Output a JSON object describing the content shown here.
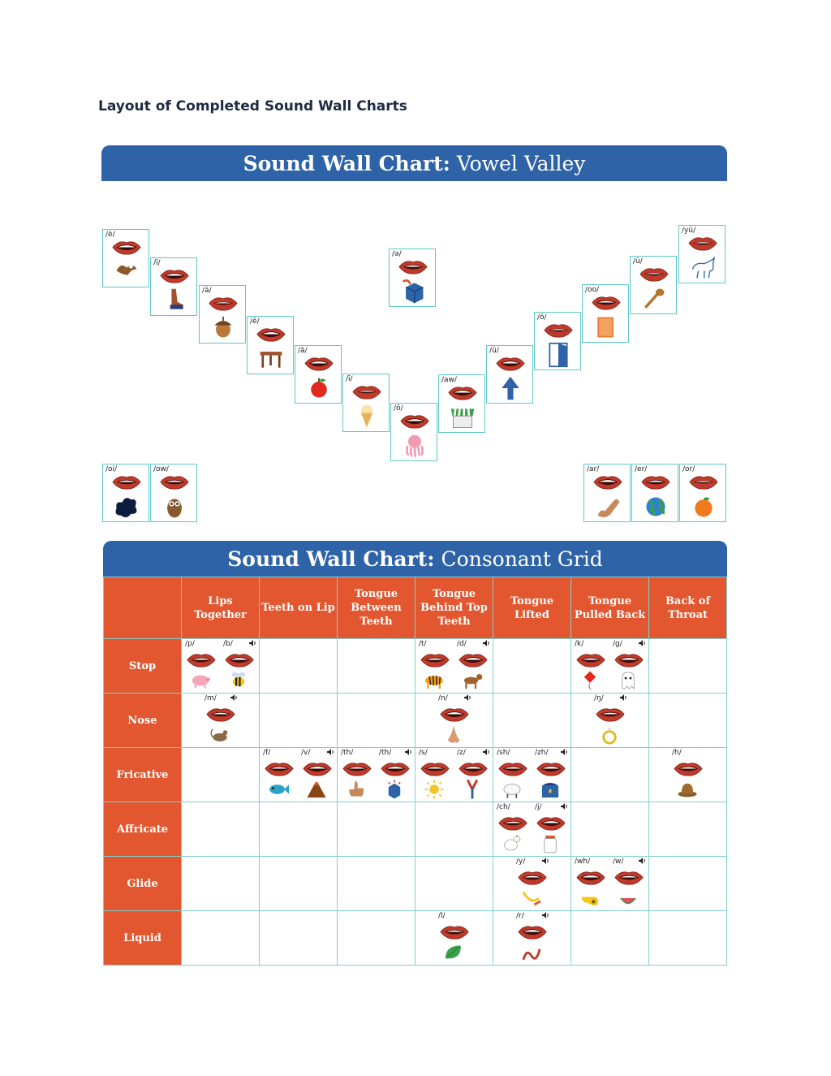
{
  "page_heading": "Layout of Completed Sound Wall Charts",
  "vowel_chart": {
    "title_bold": "Sound Wall Chart:",
    "title_light": "Vowel Valley"
  },
  "consonant_chart": {
    "title_bold": "Sound Wall Chart:",
    "title_light": "Consonant Grid"
  },
  "vowels": [
    {
      "sound": "/ē/",
      "picture": "eagle-icon"
    },
    {
      "sound": "/ī/",
      "picture": "leg-icon"
    },
    {
      "sound": "/ā/",
      "picture": "acorn-icon"
    },
    {
      "sound": "/ĕ/",
      "picture": "table-icon"
    },
    {
      "sound": "/ă/",
      "picture": "apple-icon"
    },
    {
      "sound": "/ĭ/",
      "picture": "ice-cream-icon"
    },
    {
      "sound": "/ŏ/",
      "picture": "octopus-icon"
    },
    {
      "sound": "/aw/",
      "picture": "awning-icon"
    },
    {
      "sound": "/ŭ/",
      "picture": "up-arrow-icon"
    },
    {
      "sound": "/ō/",
      "picture": "open-door-icon"
    },
    {
      "sound": "/oo/",
      "picture": "book-icon"
    },
    {
      "sound": "/ū/",
      "picture": "spoon-icon"
    },
    {
      "sound": "/yū/",
      "picture": "unicorn-icon"
    },
    {
      "sound": "/ə/",
      "picture": "cube-icon"
    },
    {
      "sound": "/oi/",
      "picture": "oil-spill-icon"
    },
    {
      "sound": "/ow/",
      "picture": "owl-icon"
    },
    {
      "sound": "/ar/",
      "picture": "arm-icon"
    },
    {
      "sound": "/er/",
      "picture": "earth-icon"
    },
    {
      "sound": "/or/",
      "picture": "orange-icon"
    }
  ],
  "columns": [
    "",
    "Lips Together",
    "Teeth on Lip",
    "Tongue Between Teeth",
    "Tongue Behind Top Teeth",
    "Tongue Lifted",
    "Tongue Pulled Back",
    "Back of Throat"
  ],
  "rows": [
    "Stop",
    "Nose",
    "Fricative",
    "Affricate",
    "Glide",
    "Liquid"
  ],
  "consonants": {
    "stop": [
      {
        "sound": "/p/",
        "picture": "pig-icon"
      },
      {
        "sound": "/b/",
        "picture": "bee-icon"
      },
      {
        "sound": "/t/",
        "picture": "tiger-icon"
      },
      {
        "sound": "/d/",
        "picture": "dog-icon"
      },
      {
        "sound": "/k/",
        "picture": "kite-icon"
      },
      {
        "sound": "/g/",
        "picture": "ghost-icon"
      }
    ],
    "nose": [
      {
        "sound": "/m/",
        "picture": "mouse-icon"
      },
      {
        "sound": "/n/",
        "picture": "nose-icon"
      },
      {
        "sound": "/ŋ/",
        "picture": "ring-icon"
      }
    ],
    "fricative": [
      {
        "sound": "/f/",
        "picture": "fish-icon"
      },
      {
        "sound": "/v/",
        "picture": "volcano-icon"
      },
      {
        "sound": "/th/",
        "picture": "thumb-icon"
      },
      {
        "sound": "/th/",
        "picture": "this-cube-icon"
      },
      {
        "sound": "/s/",
        "picture": "sun-icon"
      },
      {
        "sound": "/z/",
        "picture": "zipper-icon"
      },
      {
        "sound": "/sh/",
        "picture": "sheep-icon"
      },
      {
        "sound": "/zh/",
        "picture": "treasure-icon"
      },
      {
        "sound": "/h/",
        "picture": "hat-icon"
      }
    ],
    "affricate": [
      {
        "sound": "/ch/",
        "picture": "chicken-icon"
      },
      {
        "sound": "/j/",
        "picture": "jar-icon"
      }
    ],
    "glide": [
      {
        "sound": "/y/",
        "picture": "yarn-icon"
      },
      {
        "sound": "/wh/",
        "picture": "whistle-icon"
      },
      {
        "sound": "/w/",
        "picture": "watermelon-icon"
      }
    ],
    "liquid": [
      {
        "sound": "/l/",
        "picture": "leaf-icon"
      },
      {
        "sound": "/r/",
        "picture": "rope-icon"
      }
    ]
  },
  "speaker_icon": "speaker-icon",
  "colors": {
    "banner": "#2e63a8",
    "header_orange": "#e2572f",
    "card_border": "#5fc7c7",
    "lips": "#c0392b"
  }
}
